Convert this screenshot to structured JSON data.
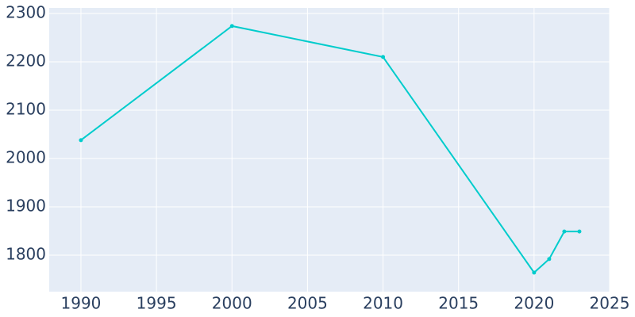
{
  "chart_data": {
    "type": "line",
    "x": [
      1990,
      2000,
      2010,
      2020,
      2021,
      2022,
      2023
    ],
    "series": [
      {
        "color": "#00cccc",
        "values": [
          2038,
          2274,
          2210,
          1764,
          1792,
          1849,
          1849
        ]
      }
    ],
    "xlim": [
      1987.9,
      2025
    ],
    "xticks": [
      1990,
      1995,
      2000,
      2005,
      2010,
      2015,
      2020,
      2025
    ],
    "ylim": [
      1724.6,
      2311.5
    ],
    "yticks": [
      1800,
      1900,
      2000,
      2100,
      2200,
      2300
    ],
    "grid": true
  }
}
